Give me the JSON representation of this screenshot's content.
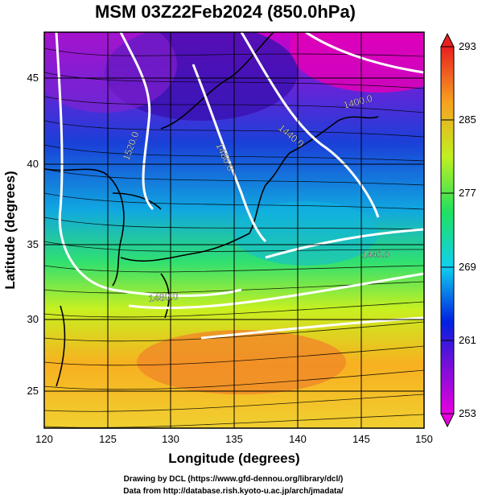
{
  "title": "MSM 03Z22Feb2024 (850.0hPa)",
  "x_axis": {
    "label": "Longitude (degrees)",
    "min": 120,
    "max": 150,
    "ticks": [
      "120",
      "125",
      "130",
      "135",
      "140",
      "145",
      "150"
    ]
  },
  "y_axis": {
    "label": "Latitude (degrees)",
    "min": 22.4,
    "max": 47.6,
    "ticks": [
      "25",
      "30",
      "35",
      "40",
      "45"
    ]
  },
  "colorbar": {
    "min": 253,
    "max": 293,
    "labels": [
      "293",
      "285",
      "277",
      "269",
      "261",
      "253"
    ]
  },
  "contours": [
    {
      "label": "1520.0"
    },
    {
      "label": "1480.0"
    },
    {
      "label": "1440.0"
    },
    {
      "label": "1400.0"
    },
    {
      "label": "1440.0"
    },
    {
      "label": "1480.0"
    }
  ],
  "credits": {
    "line1": "Drawing by DCL (https://www.gfd-dennou.org/library/dcl/)",
    "line2": "Data from http://database.rish.kyoto-u.ac.jp/arch/jmadata/"
  }
}
